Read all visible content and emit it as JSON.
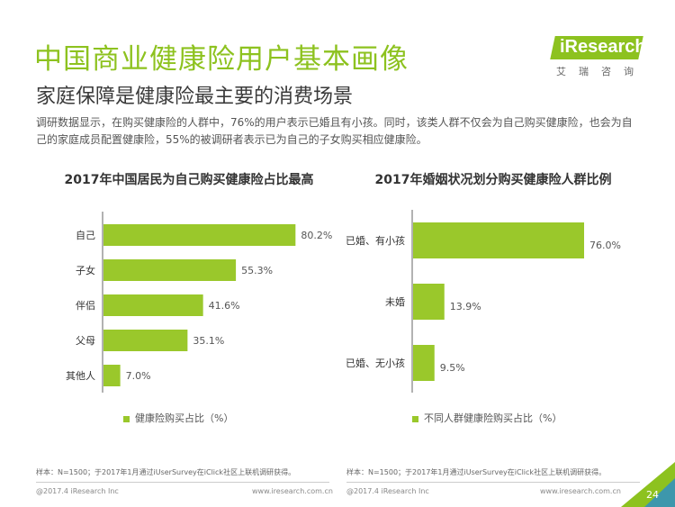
{
  "header": {
    "title": "中国商业健康险用户基本画像",
    "subtitle": "家庭保障是健康险最主要的消费场景",
    "description": "调研数据显示，在购买健康险的人群中，76%的用户表示已婚且有小孩。同时，该类人群不仅会为自己购买健康险，也会为自己的家庭成员配置健康险，55%的被调研者表示已为自己的子女购买相应健康险。"
  },
  "logo": {
    "text": "iResearch",
    "subtitle": "艾瑞咨询"
  },
  "colors": {
    "accent": "#8dc21f",
    "bar": "#9ac82b"
  },
  "chart_data": [
    {
      "type": "bar",
      "orientation": "horizontal",
      "title": "2017年中国居民为自己购买健康险占比最高",
      "categories": [
        "自己",
        "子女",
        "伴侣",
        "父母",
        "其他人"
      ],
      "series": [
        {
          "name": "健康险购买占比（%）",
          "values": [
            80.2,
            55.3,
            41.6,
            35.1,
            7.0
          ]
        }
      ],
      "value_labels": [
        "80.2%",
        "55.3%",
        "41.6%",
        "35.1%",
        "7.0%"
      ],
      "xlim": [
        0,
        100
      ],
      "legend_position": "bottom",
      "footnote": "样本：N=1500；于2017年1月通过iUserSurvey在iClick社区上联机调研获得。"
    },
    {
      "type": "bar",
      "orientation": "horizontal",
      "title": "2017年婚姻状况划分购买健康险人群比例",
      "categories": [
        "已婚、有小孩",
        "未婚",
        "已婚、无小孩"
      ],
      "series": [
        {
          "name": "不同人群健康险购买占比（%）",
          "values": [
            76.0,
            13.9,
            9.5
          ]
        }
      ],
      "value_labels": [
        "76.0%",
        "13.9%",
        "9.5%"
      ],
      "xlim": [
        0,
        100
      ],
      "legend_position": "bottom",
      "footnote": "样本：N=1500；于2017年1月通过iUserSurvey在iClick社区上联机调研获得。"
    }
  ],
  "footer": {
    "left_copyright": "@2017.4 iResearch Inc",
    "left_url": "www.iresearch.com.cn",
    "right_copyright": "@2017.4 iResearch Inc",
    "right_url": "www.iresearch.com.cn",
    "page_number": "24"
  }
}
